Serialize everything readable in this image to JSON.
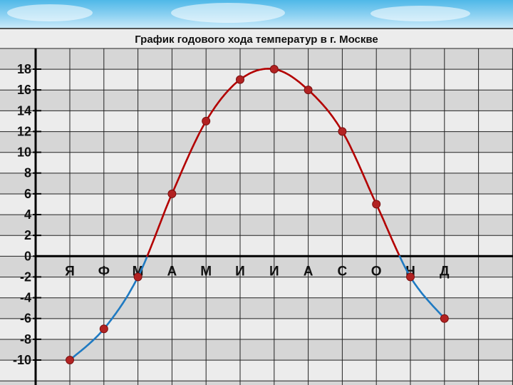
{
  "chart_data": {
    "type": "line",
    "title": "График годового хода температур в г. Москве",
    "xlabel": "",
    "ylabel": "",
    "categories": [
      "Я",
      "Ф",
      "М",
      "А",
      "М",
      "И",
      "И",
      "А",
      "С",
      "О",
      "Н",
      "Д"
    ],
    "values": [
      -10,
      -7,
      -2,
      6,
      13,
      17,
      18,
      16,
      12,
      5,
      -2,
      -6
    ],
    "y_ticks": [
      "18",
      "16",
      "14",
      "12",
      "10",
      "8",
      "6",
      "4",
      "2",
      "0",
      "-2",
      "-4",
      "-6",
      "-8",
      "-10"
    ],
    "ylim": [
      -12,
      20
    ],
    "grid": true,
    "colors": {
      "above_zero": "#b30000",
      "below_zero": "#1f7ac2",
      "marker": "#b22222",
      "band_dark": "#d6d6d6",
      "band_light": "#ececec"
    }
  }
}
